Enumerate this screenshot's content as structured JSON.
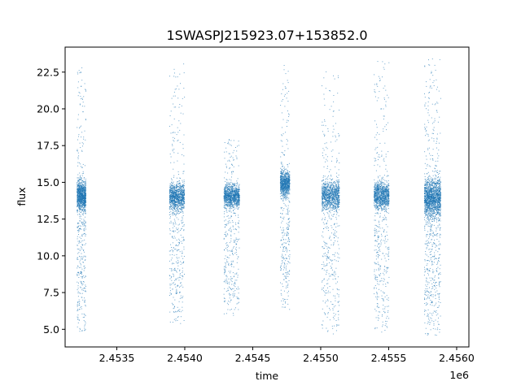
{
  "chart_data": {
    "type": "scatter",
    "title": "1SWASPJ215923.07+153852.0",
    "xlabel": "time",
    "ylabel": "flux",
    "x_offset_label": "1e6",
    "xlim": [
      2453120,
      2456090
    ],
    "ylim": [
      3.8,
      24.2
    ],
    "x_ticks": [
      2.4535,
      2.454,
      2.4545,
      2.455,
      2.4555,
      2.456
    ],
    "x_tick_labels": [
      "2.4535",
      "2.4540",
      "2.4545",
      "2.4550",
      "2.4555",
      "2.4560"
    ],
    "y_ticks": [
      5.0,
      7.5,
      10.0,
      12.5,
      15.0,
      17.5,
      20.0,
      22.5
    ],
    "y_tick_labels": [
      "5.0",
      "7.5",
      "10.0",
      "12.5",
      "15.0",
      "17.5",
      "20.0",
      "22.5"
    ],
    "grid": false,
    "marker_color": "#1f77b4",
    "series": [
      {
        "name": "",
        "segments": [
          {
            "x_range": [
              2453205,
              2453270
            ],
            "core_y": [
              12.5,
              15.8
            ],
            "spread_y": [
              4.8,
              23.0
            ],
            "density": 1.0
          },
          {
            "x_range": [
              2453885,
              2453995
            ],
            "core_y": [
              12.5,
              15.6
            ],
            "spread_y": [
              5.4,
              23.2
            ],
            "density": 1.0
          },
          {
            "x_range": [
              2454285,
              2454400
            ],
            "core_y": [
              12.8,
              15.4
            ],
            "spread_y": [
              5.9,
              18.0
            ],
            "density": 1.0
          },
          {
            "x_range": [
              2454700,
              2454770
            ],
            "core_y": [
              13.5,
              16.4
            ],
            "spread_y": [
              6.3,
              23.0
            ],
            "density": 0.8
          },
          {
            "x_range": [
              2455005,
              2455135
            ],
            "core_y": [
              12.5,
              15.8
            ],
            "spread_y": [
              4.7,
              22.7
            ],
            "density": 1.0
          },
          {
            "x_range": [
              2455390,
              2455500
            ],
            "core_y": [
              12.6,
              15.7
            ],
            "spread_y": [
              4.8,
              23.4
            ],
            "density": 1.0
          },
          {
            "x_range": [
              2455760,
              2455880
            ],
            "core_y": [
              11.8,
              16.2
            ],
            "spread_y": [
              4.6,
              23.5
            ],
            "density": 1.5
          }
        ]
      }
    ]
  }
}
